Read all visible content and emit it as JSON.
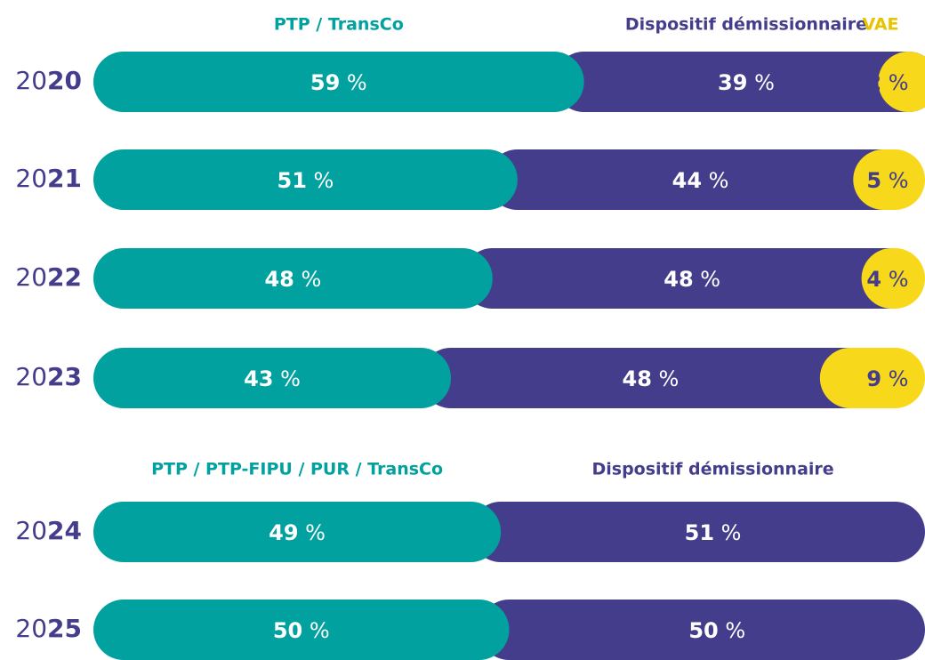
{
  "chart_data": [
    {
      "type": "stacked-bar-horizontal",
      "categories": [
        "2020",
        "2021",
        "2022",
        "2023"
      ],
      "series": [
        {
          "name": "PTP / TransCo",
          "color": "#00a19f",
          "values": [
            59,
            51,
            48,
            43
          ],
          "value_labels": [
            "59 %",
            "51 %",
            "48 %",
            "43 %"
          ]
        },
        {
          "name": "Dispositif démissionnaire",
          "color": "#433d8c",
          "values": [
            39,
            44,
            48,
            48
          ],
          "value_labels": [
            "39 %",
            "44 %",
            "48 %",
            "48 %"
          ]
        },
        {
          "name": "VAE",
          "color": "#f8d81a",
          "values": [
            2,
            5,
            4,
            9
          ],
          "value_labels": [
            "2 %",
            "5 %",
            "4 %",
            "9 %"
          ]
        }
      ]
    },
    {
      "type": "stacked-bar-horizontal",
      "categories": [
        "2024",
        "2025"
      ],
      "series": [
        {
          "name": "PTP / PTP-FIPU / PUR / TransCo",
          "color": "#00a19f",
          "values": [
            49,
            50
          ],
          "value_labels": [
            "49 %",
            "50 %"
          ]
        },
        {
          "name": "Dispositif démissionnaire",
          "color": "#433d8c",
          "values": [
            51,
            50
          ],
          "value_labels": [
            "51 %",
            "50 %"
          ]
        }
      ]
    }
  ]
}
